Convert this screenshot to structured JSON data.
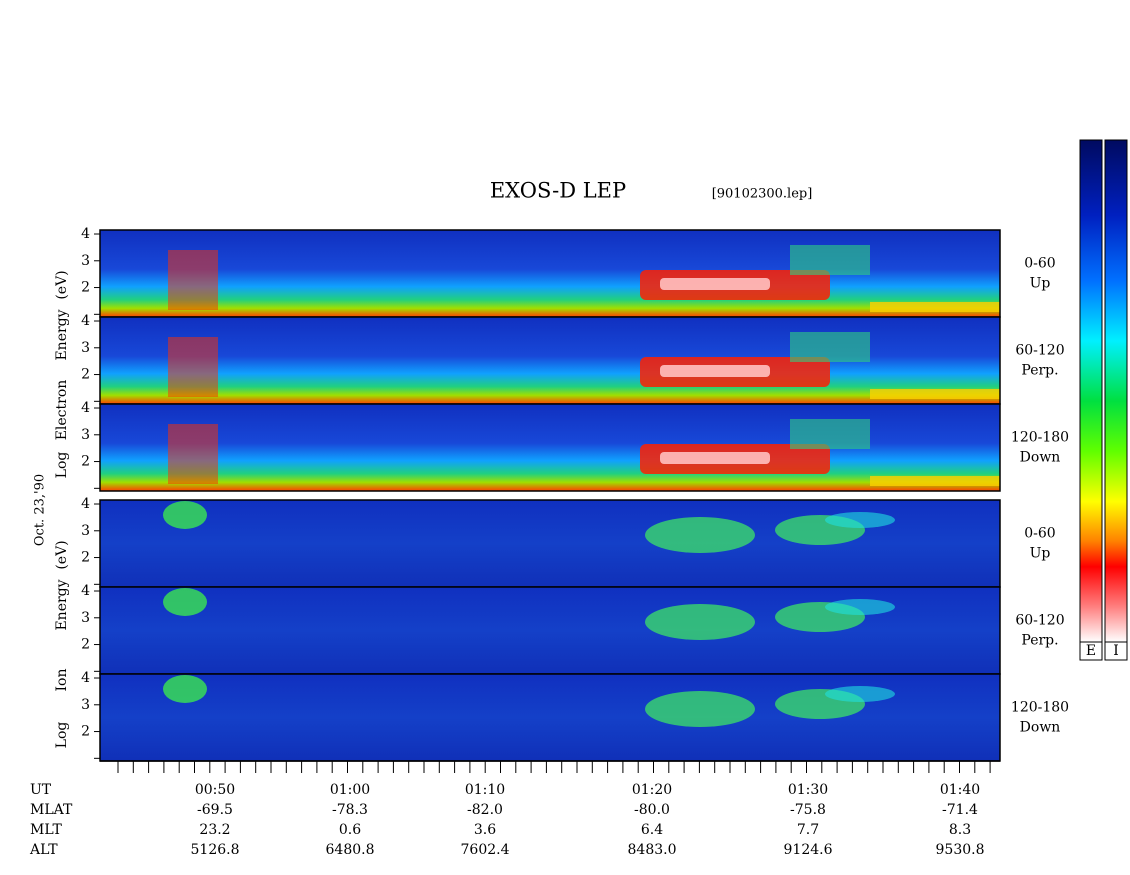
{
  "title": "EXOS-D LEP",
  "file": "[90102300.lep]",
  "date_label": "Oct. 23,'90",
  "groups": [
    {
      "axis_label": [
        "Log",
        "Electron",
        "Energy",
        "(eV)"
      ],
      "panels": [
        {
          "pitch": "0-60",
          "direction": "Up"
        },
        {
          "pitch": "60-120",
          "direction": "Perp."
        },
        {
          "pitch": "120-180",
          "direction": "Down"
        }
      ]
    },
    {
      "axis_label": [
        "Log",
        "Ion",
        "Energy",
        "(eV)"
      ],
      "panels": [
        {
          "pitch": "0-60",
          "direction": "Up"
        },
        {
          "pitch": "60-120",
          "direction": "Perp."
        },
        {
          "pitch": "120-180",
          "direction": "Down"
        }
      ]
    }
  ],
  "ylim": [
    0.9,
    4.15
  ],
  "yticks": [
    2,
    3,
    4
  ],
  "time_axis": {
    "rows": [
      {
        "label": "UT",
        "values": [
          "00:50",
          "01:00",
          "01:10",
          "01:20",
          "01:30",
          "01:40"
        ]
      },
      {
        "label": "MLAT",
        "values": [
          "-69.5",
          "-78.3",
          "-82.0",
          "-80.0",
          "-75.8",
          "-71.4"
        ]
      },
      {
        "label": "MLT",
        "values": [
          "23.2",
          "0.6",
          "3.6",
          "6.4",
          "7.7",
          "8.3"
        ]
      },
      {
        "label": "ALT",
        "values": [
          "5126.8",
          "6480.8",
          "7602.4",
          "8483.0",
          "9124.6",
          "9530.8"
        ]
      }
    ]
  },
  "colorbar_labels": [
    "E",
    "I"
  ]
}
